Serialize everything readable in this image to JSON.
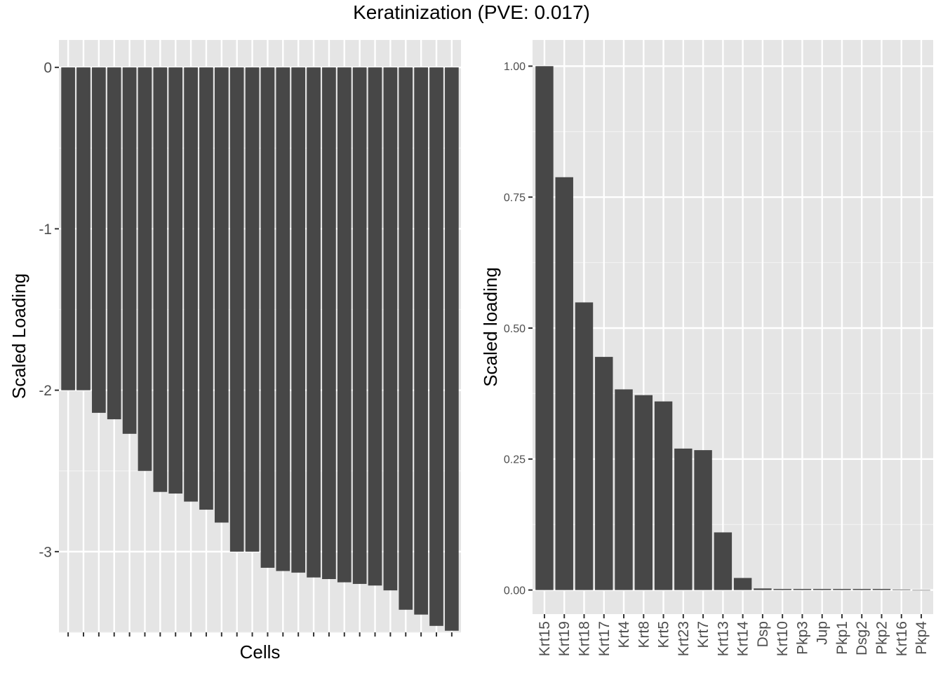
{
  "title": "Keratinization (PVE: 0.017)",
  "chart_data": [
    {
      "type": "bar",
      "panel": "left",
      "xlabel": "Cells",
      "ylabel": "Scaled Loading",
      "ylim": [
        -3.5,
        0.17
      ],
      "yticks": [
        0,
        -1,
        -2,
        -3
      ],
      "categories": [
        "",
        "",
        "",
        "",
        "",
        "",
        "",
        "",
        "",
        "",
        "",
        "",
        "",
        "",
        "",
        "",
        "",
        "",
        "",
        "",
        "",
        "",
        "",
        "",
        "",
        ""
      ],
      "values": [
        -2.0,
        -2.0,
        -2.14,
        -2.18,
        -2.27,
        -2.5,
        -2.63,
        -2.64,
        -2.69,
        -2.74,
        -2.82,
        -3.0,
        -3.0,
        -3.1,
        -3.12,
        -3.13,
        -3.16,
        -3.17,
        -3.19,
        -3.2,
        -3.21,
        -3.24,
        -3.36,
        -3.39,
        -3.46,
        -3.49
      ],
      "bar_color": "#474747",
      "panel_bg": "#e5e5e5",
      "grid": true
    },
    {
      "type": "bar",
      "panel": "right",
      "xlabel": "",
      "ylabel": "Scaled loading",
      "ylim": [
        -0.046,
        1.05
      ],
      "yticks": [
        0.0,
        0.25,
        0.5,
        0.75,
        1.0
      ],
      "ytick_labels": [
        "0.00",
        "0.25",
        "0.50",
        "0.75",
        "1.00"
      ],
      "categories": [
        "Krt15",
        "Krt19",
        "Krt18",
        "Krt17",
        "Krt4",
        "Krt8",
        "Krt5",
        "Krt23",
        "Krt7",
        "Krt13",
        "Krt14",
        "Dsp",
        "Krt10",
        "Pkp3",
        "Jup",
        "Pkp1",
        "Dsg2",
        "Pkp2",
        "Krt16",
        "Pkp4"
      ],
      "values": [
        1.0,
        0.788,
        0.549,
        0.445,
        0.383,
        0.372,
        0.36,
        0.27,
        0.267,
        0.11,
        0.023,
        0.003,
        0.002,
        0.002,
        0.002,
        0.002,
        0.002,
        0.002,
        0.001,
        0.0
      ],
      "bar_color": "#474747",
      "panel_bg": "#e5e5e5",
      "grid": true
    }
  ]
}
